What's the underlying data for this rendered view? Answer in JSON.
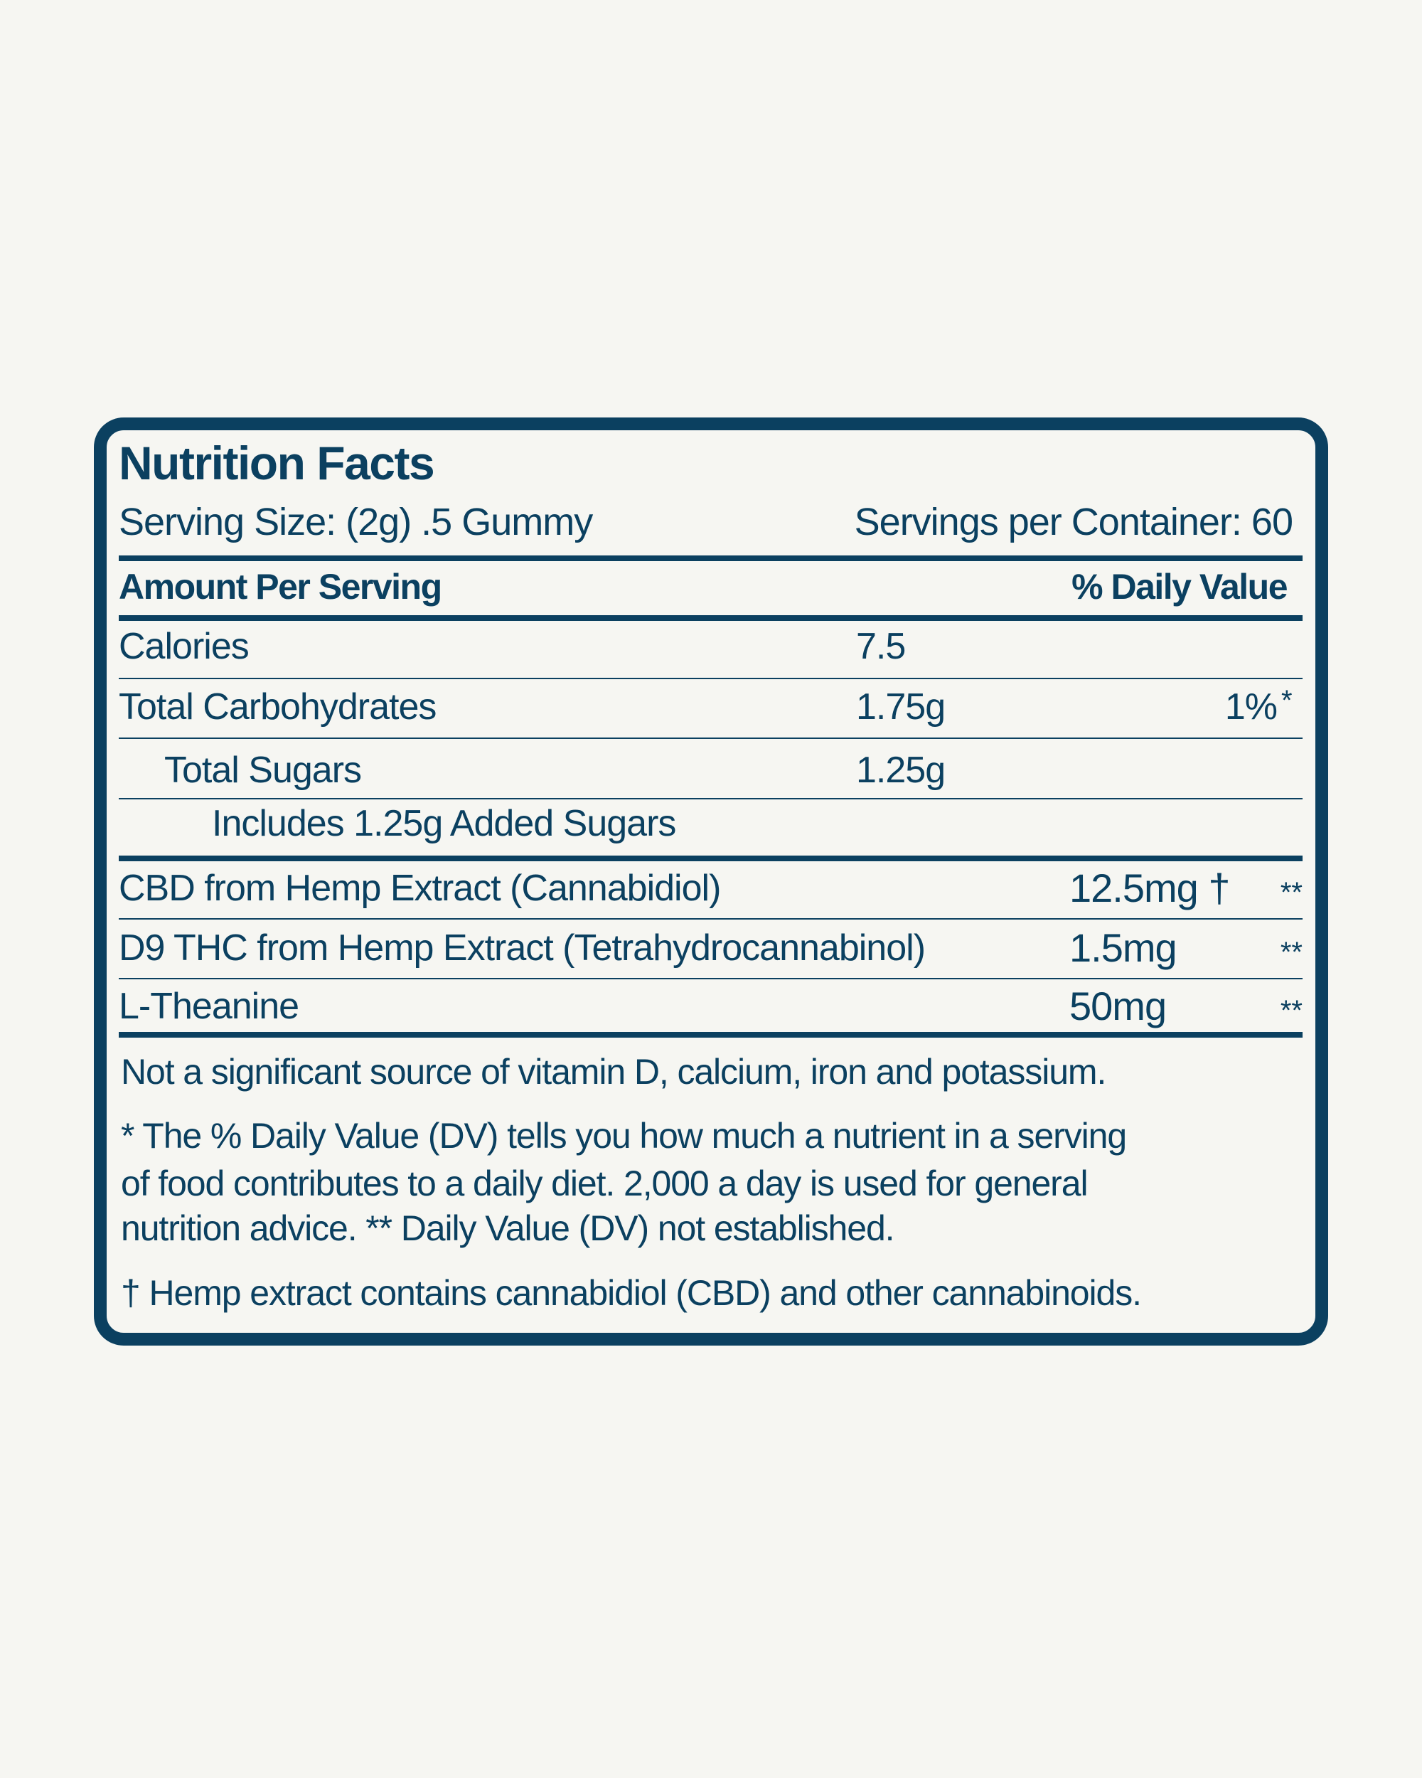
{
  "colors": {
    "ink": "#0b4060",
    "background": "#f6f6f2"
  },
  "label": {
    "title": "Nutrition Facts",
    "serving_size": "Serving Size: (2g) .5 Gummy",
    "servings_per_container": "Servings per Container: 60",
    "amount_per_serving": "Amount Per Serving",
    "daily_value_header": "% Daily Value",
    "nutrients": [
      {
        "name": "Calories",
        "amount": "7.5",
        "dv": ""
      },
      {
        "name": "Total Carbohydrates",
        "amount": "1.75g",
        "dv": "1%",
        "mark": "*"
      },
      {
        "name": "Total Sugars",
        "amount": "1.25g",
        "dv": ""
      },
      {
        "name": "Includes 1.25g Added Sugars",
        "amount": "",
        "dv": ""
      }
    ],
    "ingredients": [
      {
        "name": "CBD from Hemp Extract (Cannabidiol)",
        "amount": "12.5mg †",
        "dv": "**"
      },
      {
        "name": "D9 THC from Hemp Extract (Tetrahydrocannabinol)",
        "amount": "1.5mg",
        "dv": "**"
      },
      {
        "name": "L-Theanine",
        "amount": "50mg",
        "dv": "**"
      }
    ],
    "not_significant": "Not a significant source of vitamin D, calcium, iron and potassium.",
    "footnote_lines": [
      "* The % Daily Value (DV) tells you how much a nutrient in a serving",
      "of food contributes to a daily diet. 2,000 a day is used for general",
      "nutrition advice.  ** Daily Value (DV) not established."
    ],
    "dagger_note": "† Hemp extract contains cannabidiol (CBD) and other cannabinoids."
  }
}
